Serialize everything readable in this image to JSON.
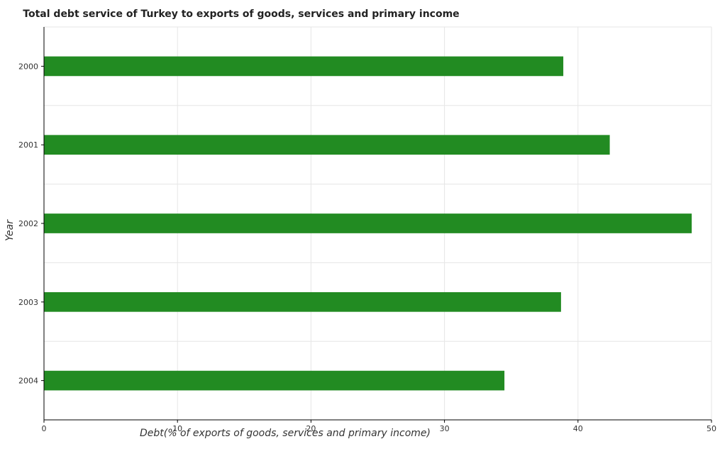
{
  "chart_data": {
    "type": "bar",
    "orientation": "horizontal",
    "title": "Total debt service of Turkey to exports of goods, services and primary income",
    "xlabel": "Debt(% of exports of goods, services and primary income)",
    "ylabel": "Year",
    "categories": [
      "2000",
      "2001",
      "2002",
      "2003",
      "2004"
    ],
    "values": [
      38.9,
      42.38,
      48.52,
      38.73,
      34.49
    ],
    "xlim": [
      0,
      50
    ],
    "xticks": [
      0,
      10,
      20,
      30,
      40,
      50
    ],
    "grid": true,
    "bar_color": "#228b22"
  }
}
